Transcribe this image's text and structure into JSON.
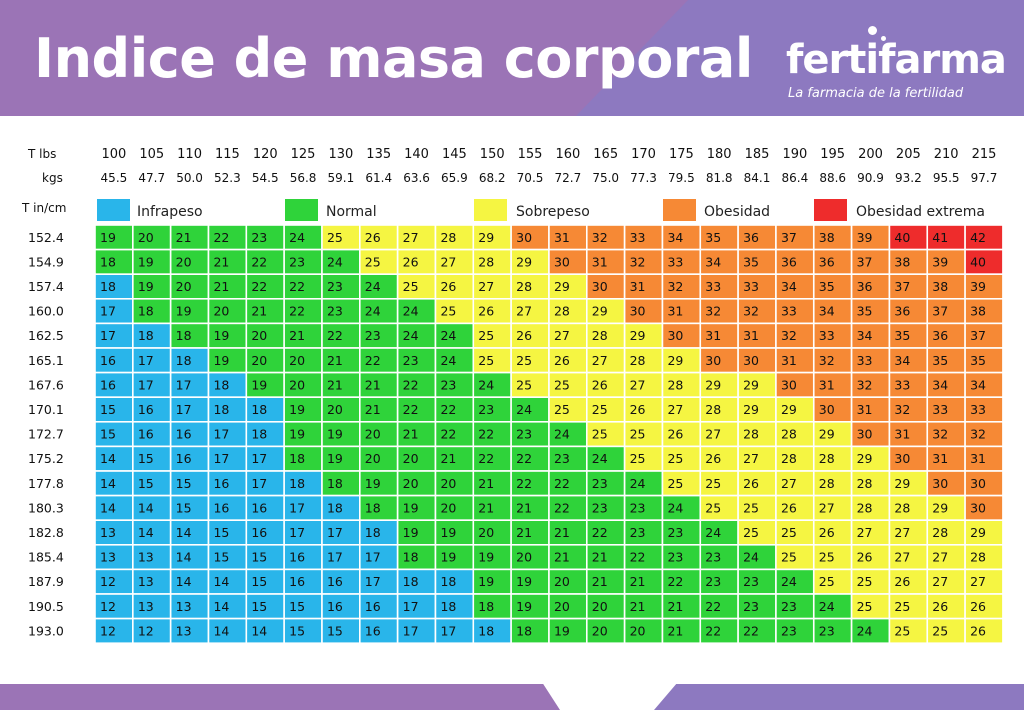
{
  "header": {
    "title": "Indice de masa corporal",
    "brand": "fertifarma",
    "tagline": "La farmacia de la fertilidad"
  },
  "colors": {
    "banner": "#9b74b6",
    "banner_accent": "#8d79c0",
    "Infrapeso": "#29b5ea",
    "Normal": "#2fd33a",
    "Sobrepeso": "#f5f542",
    "Obesidad": "#f68935",
    "Obesidad extrema": "#ee2c2c"
  },
  "chart_data": {
    "type": "table",
    "title": "Indice de masa corporal",
    "row_header_lbs": "T lbs",
    "row_header_kgs": "kgs",
    "col_header_height": "T in/cm",
    "lbs": [
      "100",
      "105",
      "110",
      "115",
      "120",
      "125",
      "130",
      "135",
      "140",
      "145",
      "150",
      "155",
      "160",
      "165",
      "170",
      "175",
      "180",
      "185",
      "190",
      "195",
      "200",
      "205",
      "210",
      "215"
    ],
    "kgs": [
      "45.5",
      "47.7",
      "50.0",
      "52.3",
      "54.5",
      "56.8",
      "59.1",
      "61.4",
      "63.6",
      "65.9",
      "68.2",
      "70.5",
      "72.7",
      "75.0",
      "77.3",
      "79.5",
      "81.8",
      "84.1",
      "86.4",
      "88.6",
      "90.9",
      "93.2",
      "95.5",
      "97.7"
    ],
    "heights": [
      "152.4",
      "154.9",
      "157.4",
      "160.0",
      "162.5",
      "165.1",
      "167.6",
      "170.1",
      "172.7",
      "175.2",
      "177.8",
      "180.3",
      "182.8",
      "185.4",
      "187.9",
      "190.5",
      "193.0"
    ],
    "legend": [
      {
        "name": "Infrapeso",
        "color": "#29b5ea"
      },
      {
        "name": "Normal",
        "color": "#2fd33a"
      },
      {
        "name": "Sobrepeso",
        "color": "#f5f542"
      },
      {
        "name": "Obesidad",
        "color": "#f68935"
      },
      {
        "name": "Obesidad extrema",
        "color": "#ee2c2c"
      }
    ],
    "values": [
      [
        19,
        20,
        21,
        22,
        23,
        24,
        25,
        26,
        27,
        28,
        29,
        30,
        31,
        32,
        33,
        34,
        35,
        36,
        37,
        38,
        39,
        40,
        41,
        42
      ],
      [
        18,
        19,
        20,
        21,
        22,
        23,
        24,
        25,
        26,
        27,
        28,
        29,
        30,
        31,
        32,
        33,
        34,
        35,
        36,
        36,
        37,
        38,
        39,
        40
      ],
      [
        18,
        19,
        20,
        21,
        22,
        22,
        23,
        24,
        25,
        26,
        27,
        28,
        29,
        30,
        31,
        32,
        33,
        33,
        34,
        35,
        36,
        37,
        38,
        39
      ],
      [
        17,
        18,
        19,
        20,
        21,
        22,
        23,
        24,
        24,
        25,
        26,
        27,
        28,
        29,
        30,
        31,
        32,
        32,
        33,
        34,
        35,
        36,
        37,
        38
      ],
      [
        17,
        18,
        18,
        19,
        20,
        21,
        22,
        23,
        24,
        24,
        25,
        26,
        27,
        28,
        29,
        30,
        31,
        31,
        32,
        33,
        34,
        35,
        36,
        37
      ],
      [
        16,
        17,
        18,
        19,
        20,
        20,
        21,
        22,
        23,
        24,
        25,
        25,
        26,
        27,
        28,
        29,
        30,
        30,
        31,
        32,
        33,
        34,
        35,
        35
      ],
      [
        16,
        17,
        17,
        18,
        19,
        20,
        21,
        21,
        22,
        23,
        24,
        25,
        25,
        26,
        27,
        28,
        29,
        29,
        30,
        31,
        32,
        33,
        34,
        34
      ],
      [
        15,
        16,
        17,
        18,
        18,
        19,
        20,
        21,
        22,
        22,
        23,
        24,
        25,
        25,
        26,
        27,
        28,
        29,
        29,
        30,
        31,
        32,
        33,
        33
      ],
      [
        15,
        16,
        16,
        17,
        18,
        19,
        19,
        20,
        21,
        22,
        22,
        23,
        24,
        25,
        25,
        26,
        27,
        28,
        28,
        29,
        30,
        31,
        32,
        32
      ],
      [
        14,
        15,
        16,
        17,
        17,
        18,
        19,
        20,
        20,
        21,
        22,
        22,
        23,
        24,
        25,
        25,
        26,
        27,
        28,
        28,
        29,
        30,
        31,
        31
      ],
      [
        14,
        15,
        15,
        16,
        17,
        18,
        18,
        19,
        20,
        20,
        21,
        22,
        22,
        23,
        24,
        25,
        25,
        26,
        27,
        28,
        28,
        29,
        30,
        30
      ],
      [
        14,
        14,
        15,
        16,
        16,
        17,
        18,
        18,
        19,
        20,
        21,
        21,
        22,
        23,
        23,
        24,
        25,
        25,
        26,
        27,
        28,
        28,
        29,
        30
      ],
      [
        13,
        14,
        14,
        15,
        16,
        17,
        17,
        18,
        19,
        19,
        20,
        21,
        21,
        22,
        23,
        23,
        24,
        25,
        25,
        26,
        27,
        27,
        28,
        29
      ],
      [
        13,
        13,
        14,
        15,
        15,
        16,
        17,
        17,
        18,
        19,
        19,
        20,
        21,
        21,
        22,
        23,
        23,
        24,
        25,
        25,
        26,
        27,
        27,
        28
      ],
      [
        12,
        13,
        14,
        14,
        15,
        16,
        16,
        17,
        18,
        18,
        19,
        19,
        20,
        21,
        21,
        22,
        23,
        23,
        24,
        25,
        25,
        26,
        27,
        27
      ],
      [
        12,
        13,
        13,
        14,
        15,
        15,
        16,
        16,
        17,
        18,
        18,
        19,
        20,
        20,
        21,
        21,
        22,
        23,
        23,
        24,
        25,
        25,
        26,
        26
      ],
      [
        12,
        12,
        13,
        14,
        14,
        15,
        15,
        16,
        17,
        17,
        18,
        18,
        19,
        20,
        20,
        21,
        22,
        22,
        23,
        23,
        24,
        25,
        25,
        26
      ]
    ],
    "categories": [
      [
        "Normal",
        "Normal",
        "Normal",
        "Normal",
        "Normal",
        "Normal",
        "Sobrepeso",
        "Sobrepeso",
        "Sobrepeso",
        "Sobrepeso",
        "Sobrepeso",
        "Obesidad",
        "Obesidad",
        "Obesidad",
        "Obesidad",
        "Obesidad",
        "Obesidad",
        "Obesidad",
        "Obesidad",
        "Obesidad",
        "Obesidad",
        "Obesidad extrema",
        "Obesidad extrema",
        "Obesidad extrema"
      ],
      [
        "Normal",
        "Normal",
        "Normal",
        "Normal",
        "Normal",
        "Normal",
        "Normal",
        "Sobrepeso",
        "Sobrepeso",
        "Sobrepeso",
        "Sobrepeso",
        "Sobrepeso",
        "Obesidad",
        "Obesidad",
        "Obesidad",
        "Obesidad",
        "Obesidad",
        "Obesidad",
        "Obesidad",
        "Obesidad",
        "Obesidad",
        "Obesidad",
        "Obesidad",
        "Obesidad extrema"
      ],
      [
        "Infrapeso",
        "Normal",
        "Normal",
        "Normal",
        "Normal",
        "Normal",
        "Normal",
        "Normal",
        "Sobrepeso",
        "Sobrepeso",
        "Sobrepeso",
        "Sobrepeso",
        "Sobrepeso",
        "Obesidad",
        "Obesidad",
        "Obesidad",
        "Obesidad",
        "Obesidad",
        "Obesidad",
        "Obesidad",
        "Obesidad",
        "Obesidad",
        "Obesidad",
        "Obesidad"
      ],
      [
        "Infrapeso",
        "Normal",
        "Normal",
        "Normal",
        "Normal",
        "Normal",
        "Normal",
        "Normal",
        "Normal",
        "Sobrepeso",
        "Sobrepeso",
        "Sobrepeso",
        "Sobrepeso",
        "Sobrepeso",
        "Obesidad",
        "Obesidad",
        "Obesidad",
        "Obesidad",
        "Obesidad",
        "Obesidad",
        "Obesidad",
        "Obesidad",
        "Obesidad",
        "Obesidad"
      ],
      [
        "Infrapeso",
        "Infrapeso",
        "Normal",
        "Normal",
        "Normal",
        "Normal",
        "Normal",
        "Normal",
        "Normal",
        "Normal",
        "Sobrepeso",
        "Sobrepeso",
        "Sobrepeso",
        "Sobrepeso",
        "Sobrepeso",
        "Obesidad",
        "Obesidad",
        "Obesidad",
        "Obesidad",
        "Obesidad",
        "Obesidad",
        "Obesidad",
        "Obesidad",
        "Obesidad"
      ],
      [
        "Infrapeso",
        "Infrapeso",
        "Infrapeso",
        "Normal",
        "Normal",
        "Normal",
        "Normal",
        "Normal",
        "Normal",
        "Normal",
        "Sobrepeso",
        "Sobrepeso",
        "Sobrepeso",
        "Sobrepeso",
        "Sobrepeso",
        "Sobrepeso",
        "Obesidad",
        "Obesidad",
        "Obesidad",
        "Obesidad",
        "Obesidad",
        "Obesidad",
        "Obesidad",
        "Obesidad"
      ],
      [
        "Infrapeso",
        "Infrapeso",
        "Infrapeso",
        "Infrapeso",
        "Normal",
        "Normal",
        "Normal",
        "Normal",
        "Normal",
        "Normal",
        "Normal",
        "Sobrepeso",
        "Sobrepeso",
        "Sobrepeso",
        "Sobrepeso",
        "Sobrepeso",
        "Sobrepeso",
        "Sobrepeso",
        "Obesidad",
        "Obesidad",
        "Obesidad",
        "Obesidad",
        "Obesidad",
        "Obesidad"
      ],
      [
        "Infrapeso",
        "Infrapeso",
        "Infrapeso",
        "Infrapeso",
        "Infrapeso",
        "Normal",
        "Normal",
        "Normal",
        "Normal",
        "Normal",
        "Normal",
        "Normal",
        "Sobrepeso",
        "Sobrepeso",
        "Sobrepeso",
        "Sobrepeso",
        "Sobrepeso",
        "Sobrepeso",
        "Sobrepeso",
        "Obesidad",
        "Obesidad",
        "Obesidad",
        "Obesidad",
        "Obesidad"
      ],
      [
        "Infrapeso",
        "Infrapeso",
        "Infrapeso",
        "Infrapeso",
        "Infrapeso",
        "Normal",
        "Normal",
        "Normal",
        "Normal",
        "Normal",
        "Normal",
        "Normal",
        "Normal",
        "Sobrepeso",
        "Sobrepeso",
        "Sobrepeso",
        "Sobrepeso",
        "Sobrepeso",
        "Sobrepeso",
        "Sobrepeso",
        "Obesidad",
        "Obesidad",
        "Obesidad",
        "Obesidad"
      ],
      [
        "Infrapeso",
        "Infrapeso",
        "Infrapeso",
        "Infrapeso",
        "Infrapeso",
        "Normal",
        "Normal",
        "Normal",
        "Normal",
        "Normal",
        "Normal",
        "Normal",
        "Normal",
        "Normal",
        "Sobrepeso",
        "Sobrepeso",
        "Sobrepeso",
        "Sobrepeso",
        "Sobrepeso",
        "Sobrepeso",
        "Sobrepeso",
        "Obesidad",
        "Obesidad",
        "Obesidad"
      ],
      [
        "Infrapeso",
        "Infrapeso",
        "Infrapeso",
        "Infrapeso",
        "Infrapeso",
        "Infrapeso",
        "Normal",
        "Normal",
        "Normal",
        "Normal",
        "Normal",
        "Normal",
        "Normal",
        "Normal",
        "Normal",
        "Sobrepeso",
        "Sobrepeso",
        "Sobrepeso",
        "Sobrepeso",
        "Sobrepeso",
        "Sobrepeso",
        "Sobrepeso",
        "Obesidad",
        "Obesidad"
      ],
      [
        "Infrapeso",
        "Infrapeso",
        "Infrapeso",
        "Infrapeso",
        "Infrapeso",
        "Infrapeso",
        "Infrapeso",
        "Normal",
        "Normal",
        "Normal",
        "Normal",
        "Normal",
        "Normal",
        "Normal",
        "Normal",
        "Normal",
        "Sobrepeso",
        "Sobrepeso",
        "Sobrepeso",
        "Sobrepeso",
        "Sobrepeso",
        "Sobrepeso",
        "Sobrepeso",
        "Obesidad"
      ],
      [
        "Infrapeso",
        "Infrapeso",
        "Infrapeso",
        "Infrapeso",
        "Infrapeso",
        "Infrapeso",
        "Infrapeso",
        "Infrapeso",
        "Normal",
        "Normal",
        "Normal",
        "Normal",
        "Normal",
        "Normal",
        "Normal",
        "Normal",
        "Normal",
        "Sobrepeso",
        "Sobrepeso",
        "Sobrepeso",
        "Sobrepeso",
        "Sobrepeso",
        "Sobrepeso",
        "Sobrepeso"
      ],
      [
        "Infrapeso",
        "Infrapeso",
        "Infrapeso",
        "Infrapeso",
        "Infrapeso",
        "Infrapeso",
        "Infrapeso",
        "Infrapeso",
        "Normal",
        "Normal",
        "Normal",
        "Normal",
        "Normal",
        "Normal",
        "Normal",
        "Normal",
        "Normal",
        "Normal",
        "Sobrepeso",
        "Sobrepeso",
        "Sobrepeso",
        "Sobrepeso",
        "Sobrepeso",
        "Sobrepeso"
      ],
      [
        "Infrapeso",
        "Infrapeso",
        "Infrapeso",
        "Infrapeso",
        "Infrapeso",
        "Infrapeso",
        "Infrapeso",
        "Infrapeso",
        "Infrapeso",
        "Infrapeso",
        "Normal",
        "Normal",
        "Normal",
        "Normal",
        "Normal",
        "Normal",
        "Normal",
        "Normal",
        "Normal",
        "Sobrepeso",
        "Sobrepeso",
        "Sobrepeso",
        "Sobrepeso",
        "Sobrepeso"
      ],
      [
        "Infrapeso",
        "Infrapeso",
        "Infrapeso",
        "Infrapeso",
        "Infrapeso",
        "Infrapeso",
        "Infrapeso",
        "Infrapeso",
        "Infrapeso",
        "Infrapeso",
        "Normal",
        "Normal",
        "Normal",
        "Normal",
        "Normal",
        "Normal",
        "Normal",
        "Normal",
        "Normal",
        "Normal",
        "Sobrepeso",
        "Sobrepeso",
        "Sobrepeso",
        "Sobrepeso"
      ],
      [
        "Infrapeso",
        "Infrapeso",
        "Infrapeso",
        "Infrapeso",
        "Infrapeso",
        "Infrapeso",
        "Infrapeso",
        "Infrapeso",
        "Infrapeso",
        "Infrapeso",
        "Infrapeso",
        "Normal",
        "Normal",
        "Normal",
        "Normal",
        "Normal",
        "Normal",
        "Normal",
        "Normal",
        "Normal",
        "Normal",
        "Sobrepeso",
        "Sobrepeso",
        "Sobrepeso"
      ]
    ]
  }
}
